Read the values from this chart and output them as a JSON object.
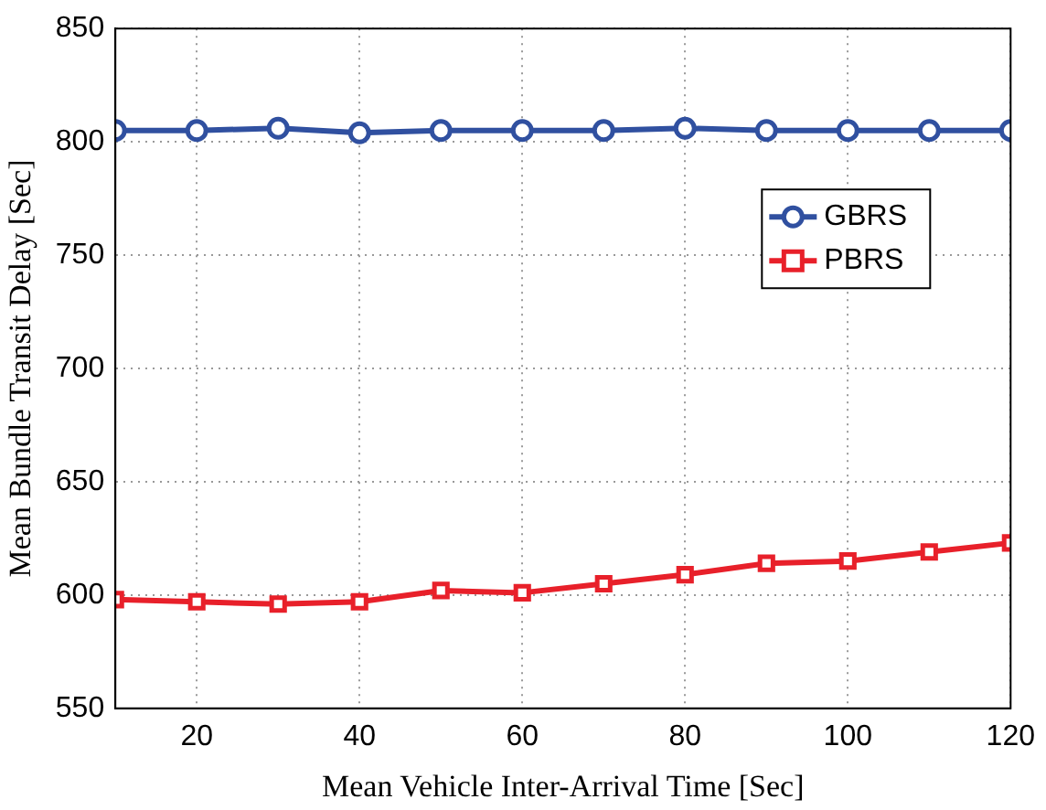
{
  "chart_data": {
    "type": "line",
    "xlabel": "Mean Vehicle Inter-Arrival Time [Sec]",
    "ylabel": "Mean Bundle Transit Delay [Sec]",
    "x": [
      10,
      20,
      30,
      40,
      50,
      60,
      70,
      80,
      90,
      100,
      110,
      120
    ],
    "series": [
      {
        "name": "GBRS",
        "color": "#3050a0",
        "marker": "circle",
        "values": [
          805,
          805,
          806,
          804,
          805,
          805,
          805,
          806,
          805,
          805,
          805,
          805
        ]
      },
      {
        "name": "PBRS",
        "color": "#e8202a",
        "marker": "square",
        "values": [
          598,
          597,
          596,
          597,
          602,
          601,
          605,
          609,
          614,
          615,
          619,
          623
        ]
      }
    ],
    "xlim": [
      10,
      120
    ],
    "xticks": [
      20,
      40,
      60,
      80,
      100,
      120
    ],
    "ylim": [
      550,
      850
    ],
    "yticks": [
      550,
      600,
      650,
      700,
      750,
      800,
      850
    ],
    "grid": true,
    "legend": "top right",
    "line_style": "solid"
  }
}
